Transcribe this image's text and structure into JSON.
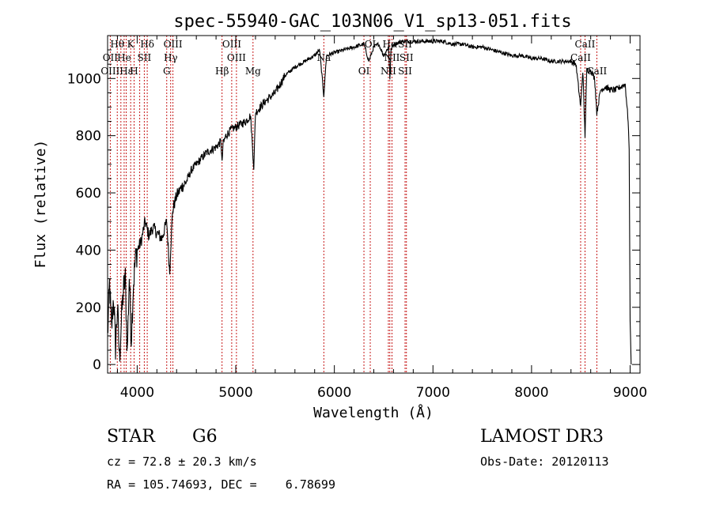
{
  "chart_data": {
    "type": "line",
    "title": "spec-55940-GAC_103N06_V1_sp13-051.fits",
    "xlabel": "Wavelength (Å)",
    "ylabel": "Flux (relative)",
    "xlim": [
      3700,
      9100
    ],
    "ylim": [
      -30,
      1150
    ],
    "xticks": [
      4000,
      5000,
      6000,
      7000,
      8000,
      9000
    ],
    "yticks": [
      0,
      200,
      400,
      600,
      800,
      1000
    ],
    "series": [
      {
        "name": "flux",
        "x": [
          3700,
          3720,
          3740,
          3760,
          3780,
          3800,
          3820,
          3840,
          3860,
          3880,
          3900,
          3920,
          3940,
          3960,
          3980,
          4000,
          4040,
          4080,
          4120,
          4160,
          4200,
          4250,
          4300,
          4330,
          4340,
          4360,
          4400,
          4450,
          4500,
          4550,
          4600,
          4650,
          4700,
          4750,
          4800,
          4850,
          4861,
          4870,
          4900,
          4950,
          5000,
          5050,
          5100,
          5150,
          5170,
          5183,
          5200,
          5250,
          5300,
          5400,
          5500,
          5600,
          5700,
          5800,
          5850,
          5893,
          5920,
          6000,
          6100,
          6200,
          6300,
          6350,
          6400,
          6450,
          6500,
          6550,
          6563,
          6575,
          6600,
          6700,
          6800,
          6900,
          7000,
          7100,
          7200,
          7300,
          7400,
          7500,
          7600,
          7700,
          7800,
          7900,
          8000,
          8100,
          8200,
          8300,
          8400,
          8450,
          8498,
          8520,
          8542,
          8560,
          8600,
          8640,
          8662,
          8700,
          8750,
          8800,
          8850,
          8900,
          8950,
          8980,
          8990,
          9000,
          9010
        ],
        "y": [
          100,
          280,
          120,
          240,
          60,
          200,
          20,
          150,
          260,
          300,
          40,
          310,
          90,
          270,
          360,
          400,
          430,
          500,
          450,
          480,
          460,
          440,
          500,
          320,
          410,
          540,
          590,
          620,
          640,
          680,
          700,
          720,
          740,
          750,
          760,
          780,
          700,
          770,
          800,
          820,
          830,
          840,
          850,
          870,
          760,
          690,
          880,
          900,
          920,
          950,
          1010,
          1040,
          1060,
          1080,
          1100,
          940,
          1080,
          1090,
          1100,
          1110,
          1120,
          1060,
          1110,
          1120,
          1080,
          1110,
          1000,
          1100,
          1120,
          1130,
          1130,
          1130,
          1130,
          1130,
          1120,
          1120,
          1110,
          1110,
          1100,
          1090,
          1080,
          1080,
          1070,
          1070,
          1060,
          1060,
          1060,
          1050,
          900,
          1030,
          800,
          1030,
          1030,
          1000,
          880,
          960,
          970,
          960,
          960,
          970,
          980,
          850,
          750,
          150,
          0
        ]
      }
    ],
    "vlines": {
      "color": "#c00000",
      "wavelengths": [
        3727,
        3798,
        3835,
        3868,
        3889,
        3934,
        3969,
        4026,
        4072,
        4102,
        4300,
        4340,
        4363,
        4861,
        4959,
        5007,
        5175,
        5893,
        6300,
        6364,
        6548,
        6563,
        6584,
        6717,
        6731,
        8498,
        8542,
        8662
      ]
    },
    "line_labels": [
      {
        "text": "Hθ",
        "x": 3798,
        "row": 0
      },
      {
        "text": "K",
        "x": 3934,
        "row": 0
      },
      {
        "text": "Hδ",
        "x": 4102,
        "row": 0
      },
      {
        "text": "OIII",
        "x": 4363,
        "row": 0
      },
      {
        "text": "OIII",
        "x": 4959,
        "row": 0
      },
      {
        "text": "Hα",
        "x": 6563,
        "row": 0
      },
      {
        "text": "SII",
        "x": 6717,
        "row": 0
      },
      {
        "text": "OI",
        "x": 6364,
        "row": 0
      },
      {
        "text": "CaII",
        "x": 8542,
        "row": 0
      },
      {
        "text": "OII",
        "x": 3727,
        "row": 1
      },
      {
        "text": "He",
        "x": 3868,
        "row": 1
      },
      {
        "text": "SII",
        "x": 4072,
        "row": 1
      },
      {
        "text": "Hγ",
        "x": 4340,
        "row": 1
      },
      {
        "text": "OIII",
        "x": 5007,
        "row": 1
      },
      {
        "text": "Na",
        "x": 5893,
        "row": 1
      },
      {
        "text": "NII",
        "x": 6584,
        "row": 1
      },
      {
        "text": "SII",
        "x": 6731,
        "row": 1
      },
      {
        "text": "CaII",
        "x": 8498,
        "row": 1
      },
      {
        "text": "OIII",
        "x": 3727,
        "row": 2
      },
      {
        "text": "Hε",
        "x": 3889,
        "row": 2
      },
      {
        "text": "H",
        "x": 3969,
        "row": 2
      },
      {
        "text": "G",
        "x": 4300,
        "row": 2
      },
      {
        "text": "Hβ",
        "x": 4861,
        "row": 2
      },
      {
        "text": "Mg",
        "x": 5175,
        "row": 2
      },
      {
        "text": "OI",
        "x": 6300,
        "row": 2
      },
      {
        "text": "NII",
        "x": 6548,
        "row": 2
      },
      {
        "text": "SII",
        "x": 6717,
        "row": 2
      },
      {
        "text": "CaII",
        "x": 8662,
        "row": 2
      }
    ]
  },
  "info": {
    "object_class": "STAR",
    "subclass": "G6",
    "survey": "LAMOST DR3",
    "redshift": "cz = 72.8 ± 20.3 km/s",
    "obs_date": "Obs-Date: 20120113",
    "coords": "RA = 105.74693, DEC =    6.78699"
  }
}
